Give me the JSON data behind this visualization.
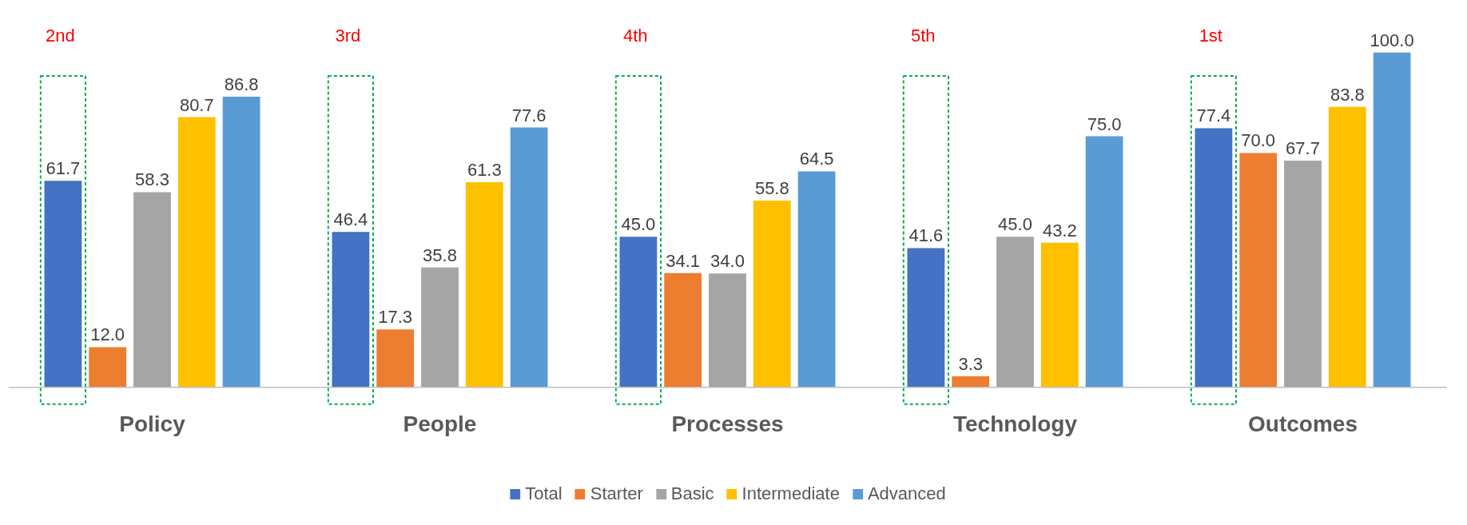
{
  "chart_data": {
    "type": "bar",
    "categories": [
      "Policy",
      "People",
      "Processes",
      "Technology",
      "Outcomes"
    ],
    "series": [
      {
        "name": "Total",
        "color": "#4472c4",
        "values": [
          61.7,
          46.4,
          45.0,
          41.6,
          77.4
        ],
        "value_labels": [
          "61.7",
          "46.4",
          "45.0",
          "41.6",
          "77.4"
        ]
      },
      {
        "name": "Starter",
        "color": "#ed7d31",
        "values": [
          12.0,
          17.3,
          34.1,
          3.3,
          70.0
        ],
        "value_labels": [
          "12.0",
          "17.3",
          "34.1",
          "3.3",
          "70.0"
        ]
      },
      {
        "name": "Basic",
        "color": "#a5a5a5",
        "values": [
          58.3,
          35.8,
          34.0,
          45.0,
          67.7
        ],
        "value_labels": [
          "58.3",
          "35.8",
          "34.0",
          "45.0",
          "67.7"
        ]
      },
      {
        "name": "Intermediate",
        "color": "#ffc000",
        "values": [
          80.7,
          61.3,
          55.8,
          43.2,
          83.8
        ],
        "value_labels": [
          "80.7",
          "61.3",
          "55.8",
          "43.2",
          "83.8"
        ]
      },
      {
        "name": "Advanced",
        "color": "#5b9bd5",
        "values": [
          86.8,
          77.6,
          64.5,
          75.0,
          100.0
        ],
        "value_labels": [
          "86.8",
          "77.6",
          "64.5",
          "75.0",
          "100.0"
        ]
      }
    ],
    "legend": "bottom",
    "grid": false,
    "tick_labels": "x",
    "annotations": [
      "2nd",
      "3rd",
      "4th",
      "5th",
      "1st"
    ]
  }
}
